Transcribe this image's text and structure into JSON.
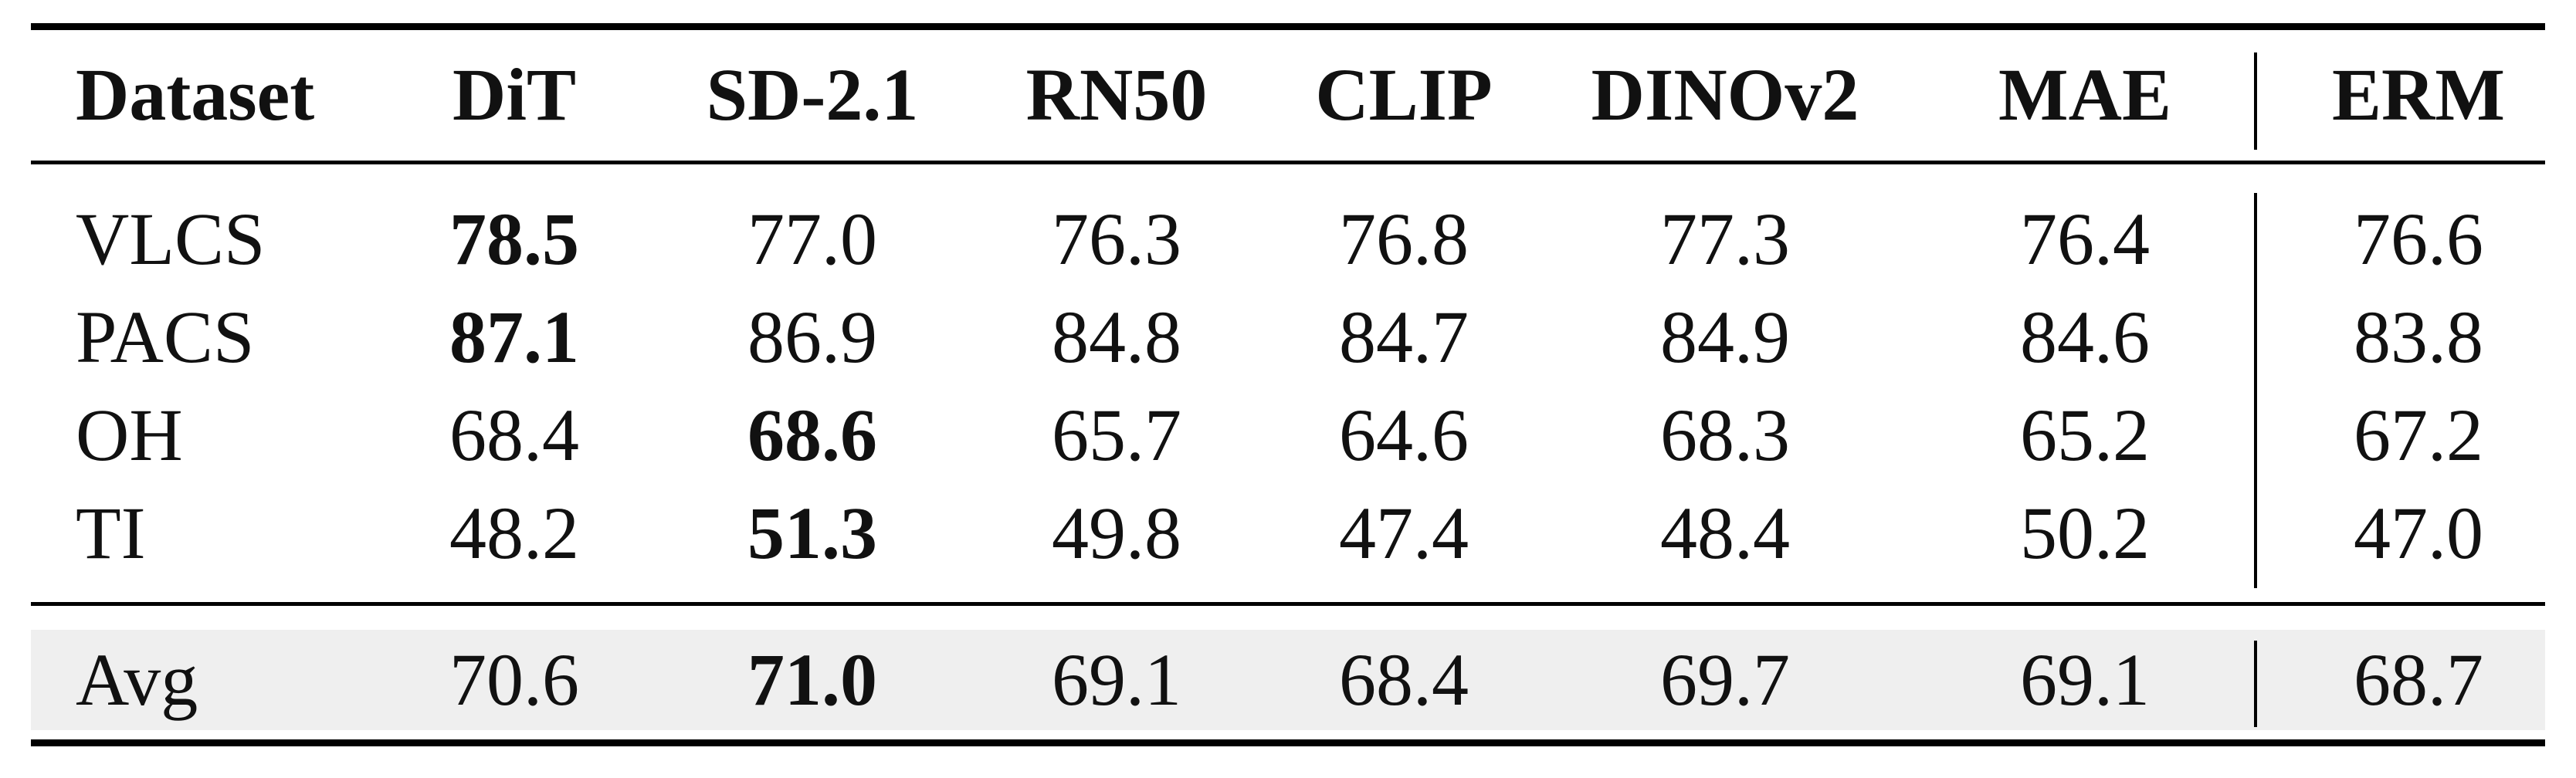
{
  "table": {
    "headers": [
      "Dataset",
      "DiT",
      "SD-2.1",
      "RN50",
      "CLIP",
      "DINOv2",
      "MAE",
      "ERM"
    ],
    "rows": [
      {
        "label": "VLCS",
        "values": [
          "78.5",
          "77.0",
          "76.3",
          "76.8",
          "77.3",
          "76.4",
          "76.6"
        ],
        "bold_index": 0
      },
      {
        "label": "PACS",
        "values": [
          "87.1",
          "86.9",
          "84.8",
          "84.7",
          "84.9",
          "84.6",
          "83.8"
        ],
        "bold_index": 0
      },
      {
        "label": "OH",
        "values": [
          "68.4",
          "68.6",
          "65.7",
          "64.6",
          "68.3",
          "65.2",
          "67.2"
        ],
        "bold_index": 1
      },
      {
        "label": "TI",
        "values": [
          "48.2",
          "51.3",
          "49.8",
          "47.4",
          "48.4",
          "50.2",
          "47.0"
        ],
        "bold_index": 1
      }
    ],
    "avg": {
      "label": "Avg",
      "values": [
        "70.6",
        "71.0",
        "69.1",
        "68.4",
        "69.7",
        "69.1",
        "68.7"
      ],
      "bold_index": 1
    },
    "avg_background": "#efefef"
  }
}
